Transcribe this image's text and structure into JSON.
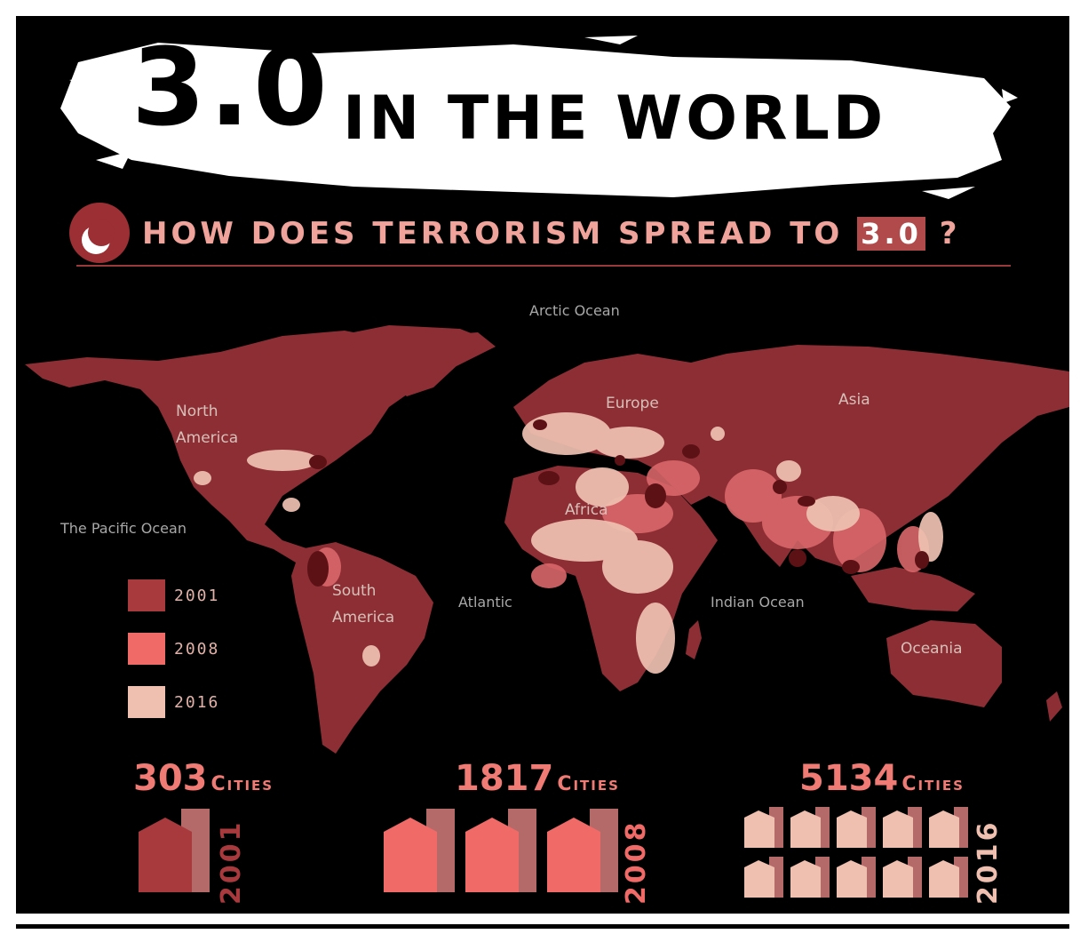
{
  "title": {
    "number": "3.0",
    "rest": "IN THE WORLD"
  },
  "subtitle": {
    "text": "HOW DOES TERRORISM SPREAD TO",
    "highlight": "3.0",
    "end": "?"
  },
  "map": {
    "ocean_labels": [
      "Arctic Ocean",
      "The Pacific Ocean",
      "Atlantic",
      "Indian Ocean"
    ],
    "region_labels": [
      "North America",
      "South America",
      "Europe",
      "Africa",
      "Asia",
      "Oceania"
    ]
  },
  "legend": [
    {
      "year": "2001",
      "color": "#a83a3e"
    },
    {
      "year": "2008",
      "color": "#f06a68"
    },
    {
      "year": "2016",
      "color": "#efbfaf"
    }
  ],
  "stats": [
    {
      "year": "2001",
      "count": "303",
      "unit": "Cities",
      "houses": 1,
      "color": "#a83a3e"
    },
    {
      "year": "2008",
      "count": "1817",
      "unit": "Cities",
      "houses": 3,
      "color": "#f06a68"
    },
    {
      "year": "2016",
      "count": "5134",
      "unit": "Cities",
      "houses": 10,
      "color": "#efbfaf"
    }
  ],
  "colors": {
    "land": "#8c2e34",
    "spread_2008": "#d9676a",
    "spread_2016": "#efc2b2",
    "dark_spot": "#5c1215"
  }
}
